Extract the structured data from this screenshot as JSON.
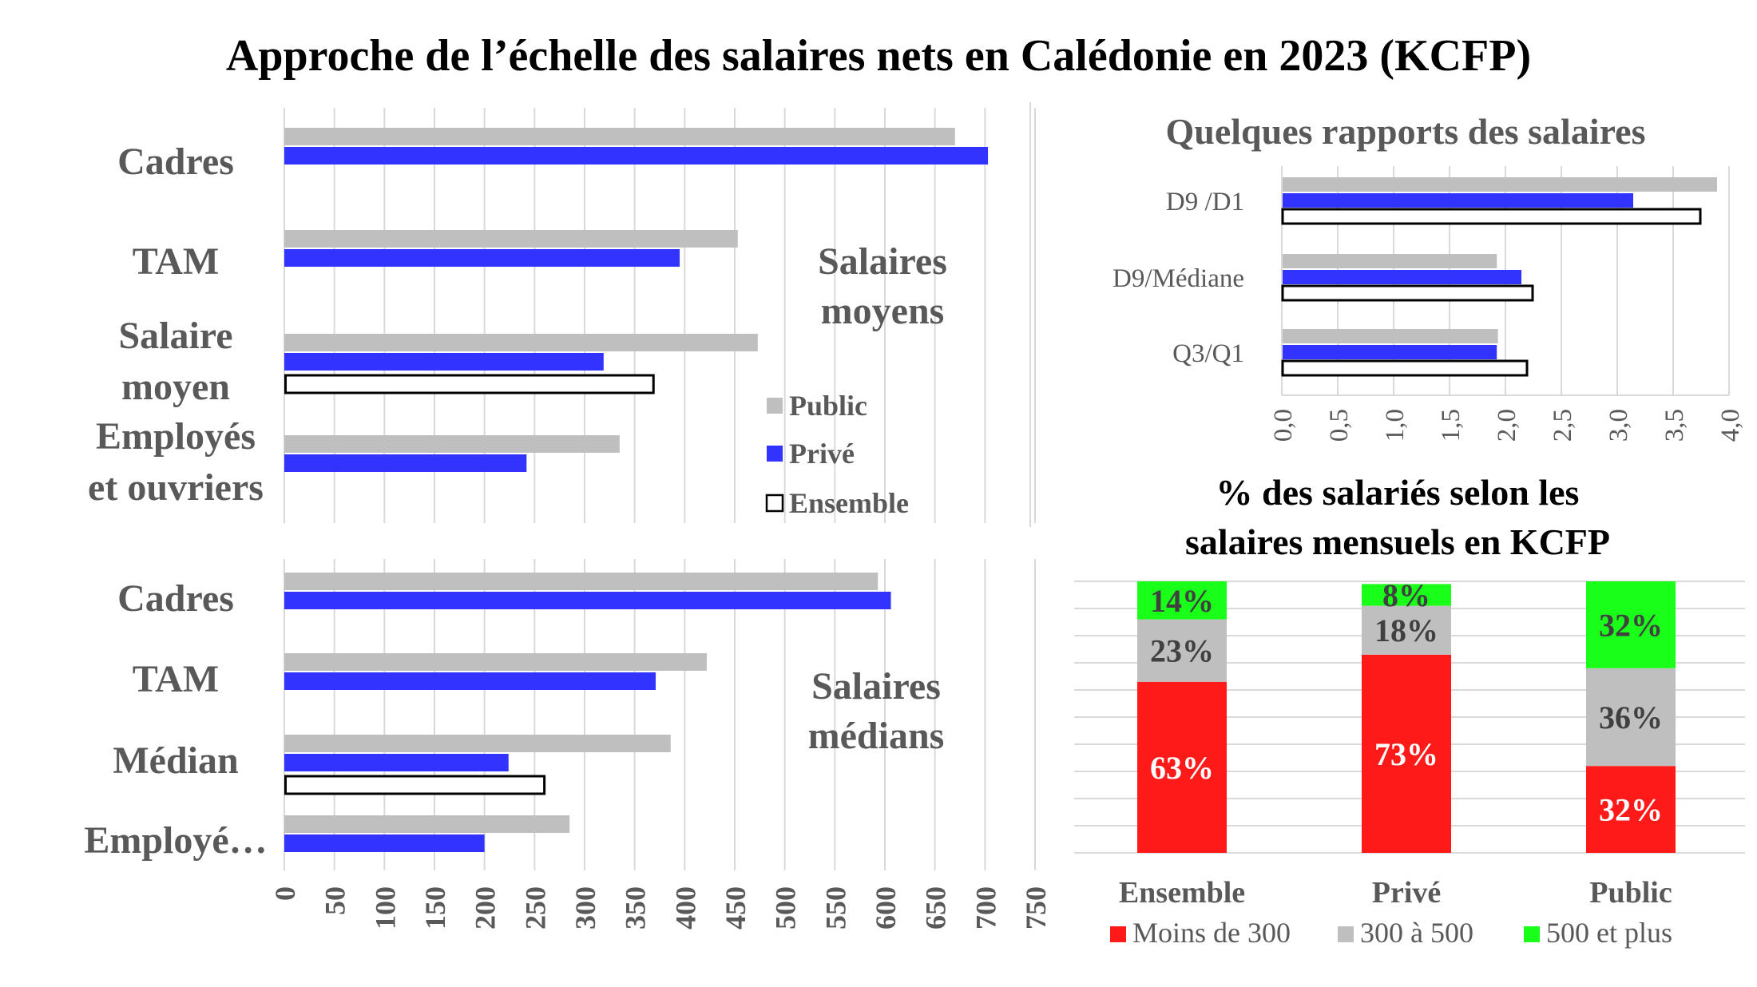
{
  "title": "Approche de l’échelle des salaires nets en Calédonie en 2023 (KCFP)",
  "colors": {
    "public": "#bfbfbf",
    "prive": "#3333ff",
    "ensemble": "#ffffff",
    "moins300": "#ff1a1a",
    "de300a500": "#bfbfbf",
    "plus500": "#1aff1a"
  },
  "chart_data": [
    {
      "type": "bar",
      "orientation": "horizontal",
      "annotation": [
        "Salaires",
        "moyens"
      ],
      "categories": [
        [
          "Cadres"
        ],
        [
          "TAM"
        ],
        [
          "Salaire",
          "moyen"
        ],
        [
          "Employés",
          "et ouvriers"
        ]
      ],
      "series": [
        {
          "name": "Public",
          "values": [
            670,
            453,
            473,
            335
          ]
        },
        {
          "name": "Privé",
          "values": [
            703,
            395,
            319,
            242
          ]
        },
        {
          "name": "Ensemble",
          "values": [
            null,
            null,
            370,
            null
          ]
        }
      ],
      "xlim": [
        0,
        750
      ],
      "legend": [
        "Public",
        "Privé",
        "Ensemble"
      ],
      "legend_position": "right"
    },
    {
      "type": "bar",
      "orientation": "horizontal",
      "annotation": [
        "Salaires",
        "médians"
      ],
      "categories": [
        [
          "Cadres"
        ],
        [
          "TAM"
        ],
        [
          "Médian"
        ],
        [
          "Employé…"
        ]
      ],
      "series": [
        {
          "name": "Public",
          "values": [
            593,
            422,
            386,
            285
          ]
        },
        {
          "name": "Privé",
          "values": [
            606,
            371,
            224,
            200
          ]
        },
        {
          "name": "Ensemble",
          "values": [
            null,
            null,
            261,
            null
          ]
        }
      ],
      "xlim": [
        0,
        750
      ],
      "xticks": [
        "0",
        "50",
        "100",
        "150",
        "200",
        "250",
        "300",
        "350",
        "400",
        "450",
        "500",
        "550",
        "600",
        "650",
        "700",
        "750"
      ]
    },
    {
      "type": "bar",
      "orientation": "horizontal",
      "title": "Quelques rapports des salaires",
      "categories": [
        "D9 /D1",
        "D9/Médiane",
        "Q3/Q1"
      ],
      "series": [
        {
          "name": "Public",
          "values": [
            3.9,
            1.93,
            1.94
          ]
        },
        {
          "name": "Privé",
          "values": [
            3.15,
            2.15,
            1.93
          ]
        },
        {
          "name": "Ensemble",
          "values": [
            3.75,
            2.25,
            2.2
          ]
        }
      ],
      "xlim": [
        0,
        4.0
      ],
      "xticks": [
        "0,0",
        "0,5",
        "1,0",
        "1,5",
        "2,0",
        "2,5",
        "3,0",
        "3,5",
        "4,0"
      ]
    },
    {
      "type": "bar",
      "stacked": true,
      "title": [
        "% des salariés selon les",
        "salaires mensuels en KCFP"
      ],
      "categories": [
        "Ensemble",
        "Privé",
        "Public"
      ],
      "series": [
        {
          "name": "Moins de 300",
          "values": [
            63,
            73,
            32
          ],
          "labels": [
            "63%",
            "73%",
            "32%"
          ]
        },
        {
          "name": "300 à 500",
          "values": [
            23,
            18,
            36
          ],
          "labels": [
            "23%",
            "18%",
            "36%"
          ]
        },
        {
          "name": "500 et plus",
          "values": [
            14,
            8,
            32
          ],
          "labels": [
            "14%",
            "8%",
            "32%"
          ]
        }
      ],
      "ylim": [
        0,
        100
      ],
      "legend_position": "bottom"
    }
  ]
}
